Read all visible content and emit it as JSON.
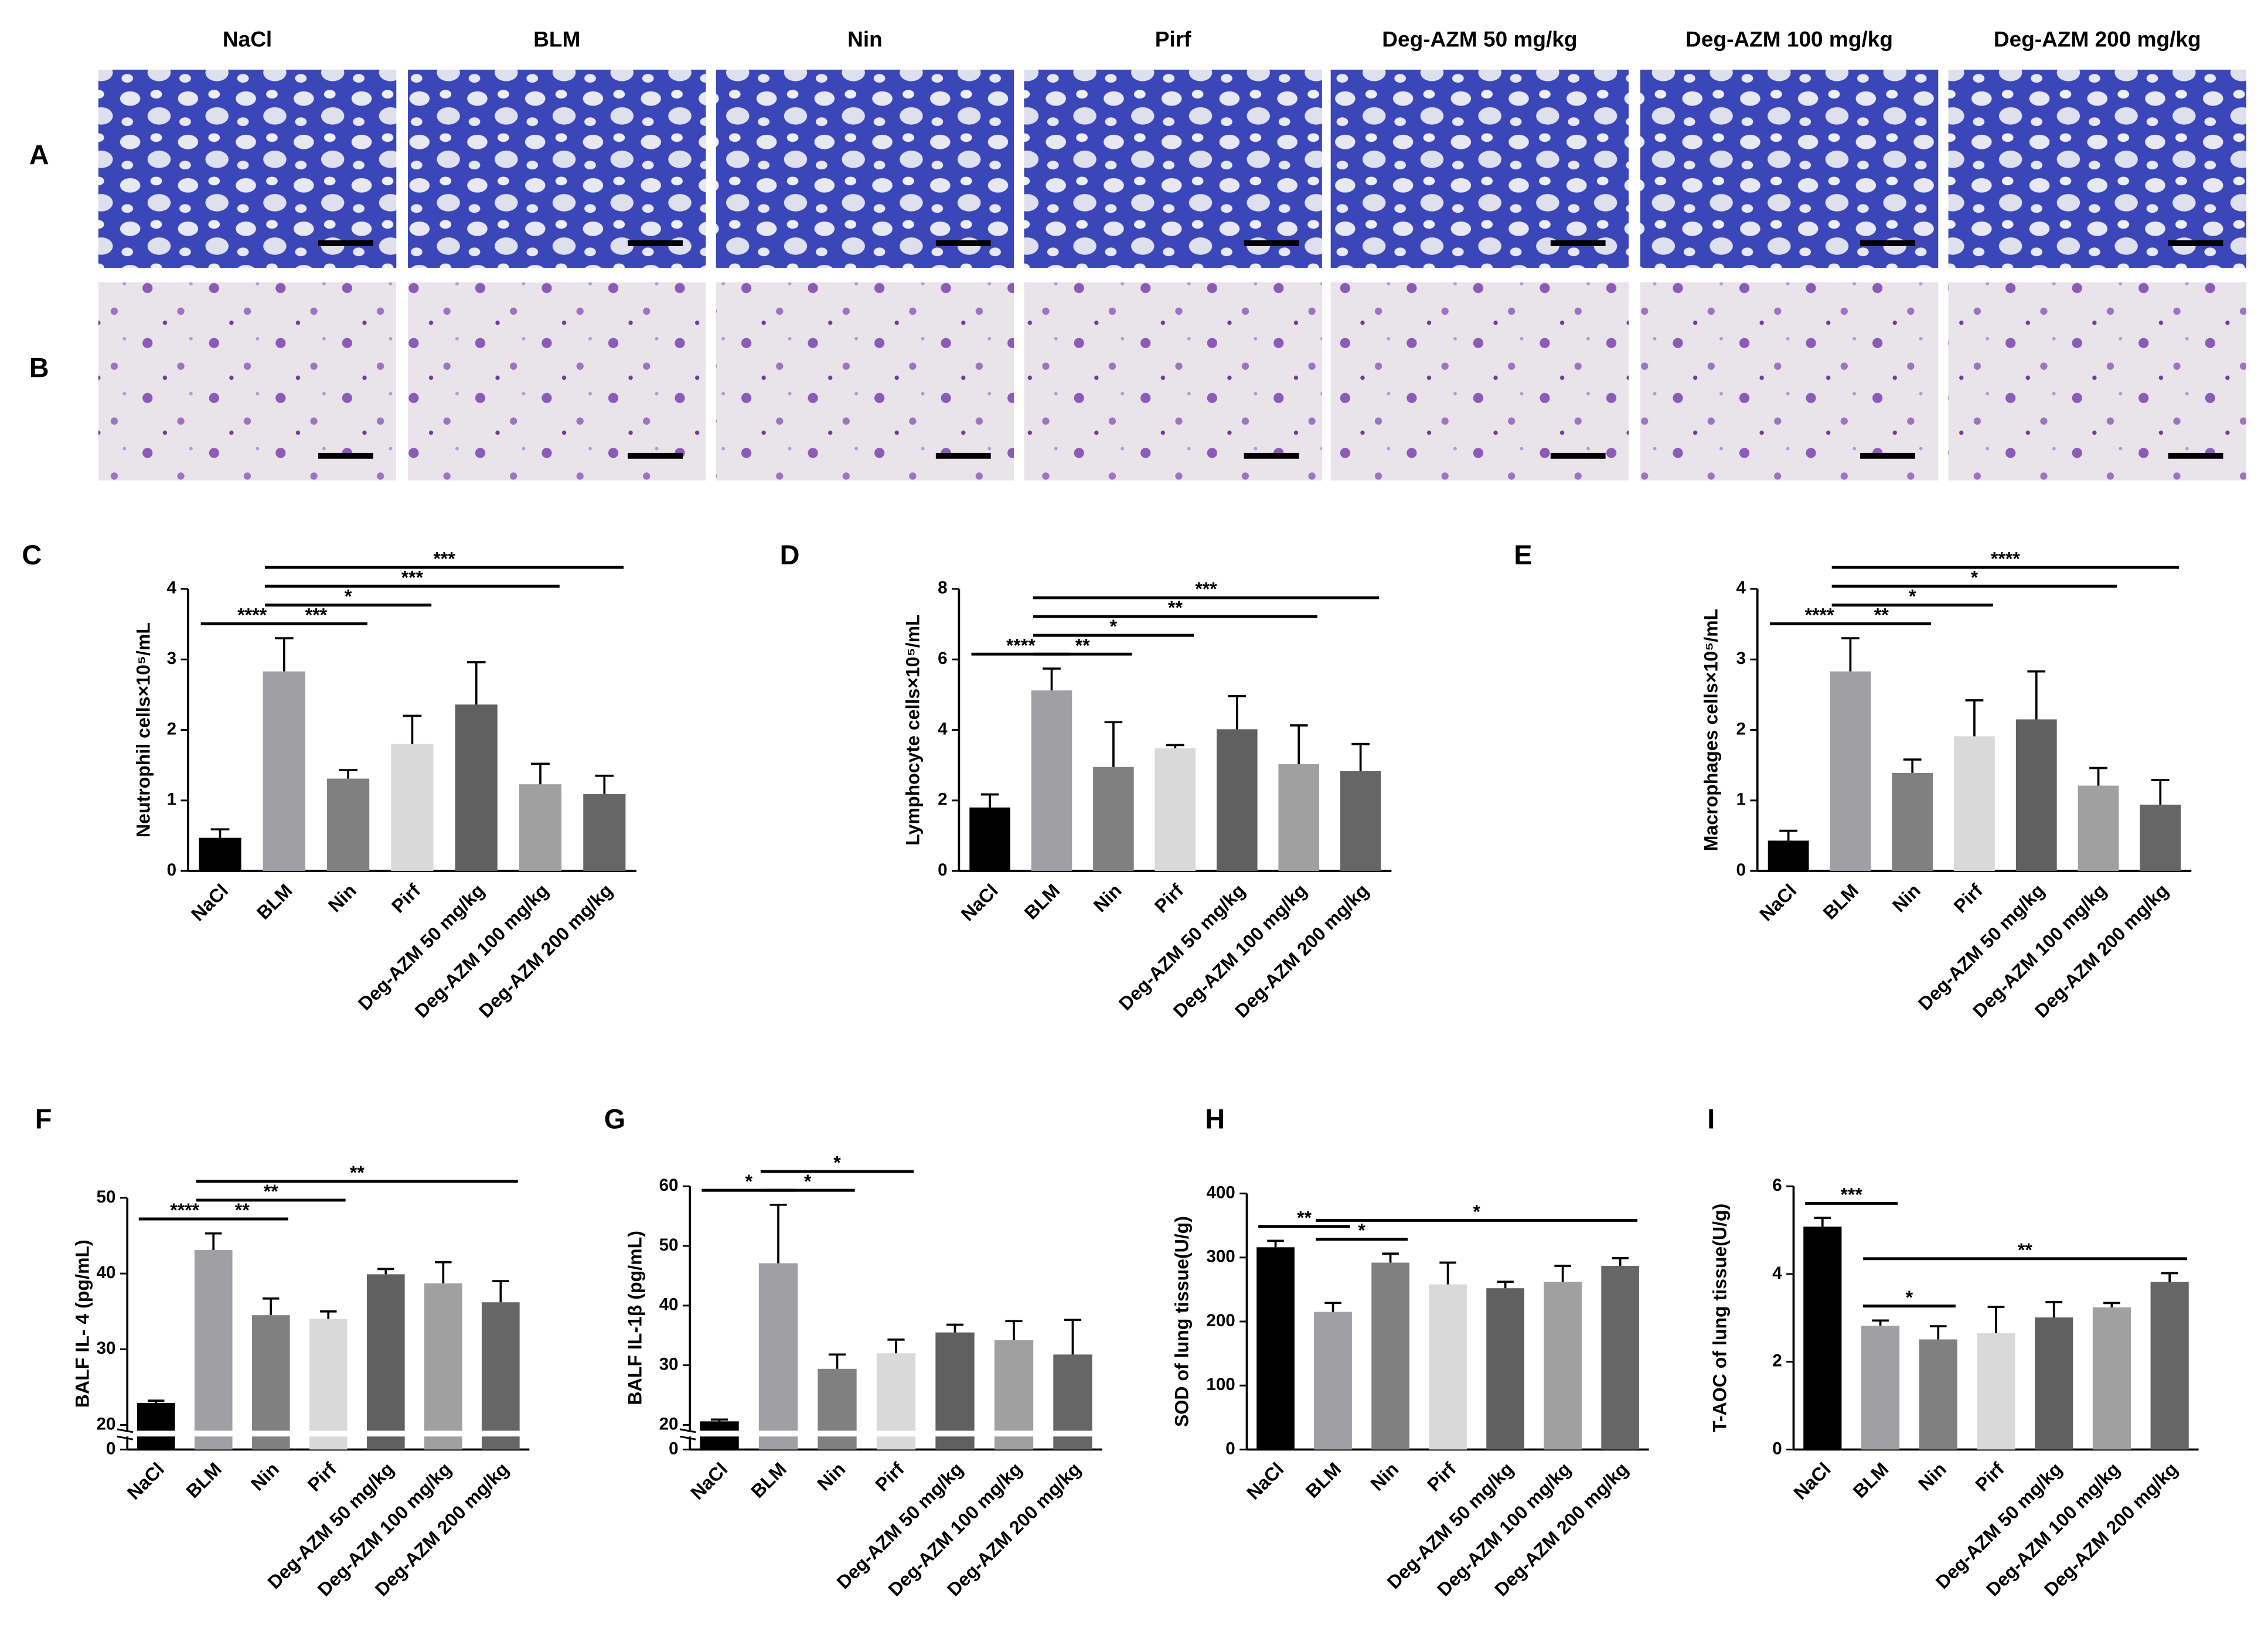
{
  "micrographs": {
    "columns": [
      "NaCl",
      "BLM",
      "Nin",
      "Pirf",
      "Deg-AZM 50 mg/kg",
      "Deg-AZM 100 mg/kg",
      "Deg-AZM 200 mg/kg"
    ],
    "rows": [
      "A",
      "B"
    ]
  },
  "chart_data": [
    {
      "type": "bar",
      "panel": "C",
      "ylabel": "Neutrophil cells×10⁵/mL",
      "categories": [
        "NaCl",
        "BLM",
        "Nin",
        "Pirf",
        "Deg-AZM 50 mg/kg",
        "Deg-AZM 100 mg/kg",
        "Deg-AZM 200 mg/kg"
      ],
      "values": [
        0.47,
        2.83,
        1.31,
        1.8,
        2.36,
        1.23,
        1.09
      ],
      "errors": [
        0.12,
        0.47,
        0.12,
        0.4,
        0.6,
        0.29,
        0.26
      ],
      "colors": [
        "#000000",
        "#a0a0a4",
        "#808080",
        "#d9d9d9",
        "#606060",
        "#a0a0a0",
        "#666666"
      ],
      "ylim": [
        0,
        4
      ],
      "yticks": [
        0,
        1,
        2,
        3,
        4
      ],
      "comparisons": [
        {
          "pair": [
            "NaCl",
            "BLM"
          ],
          "label": "****"
        },
        {
          "pair": [
            "BLM",
            "Nin"
          ],
          "label": "***"
        },
        {
          "pair": [
            "BLM",
            "Pirf"
          ],
          "label": "*"
        },
        {
          "pair": [
            "BLM",
            "Deg-AZM 100 mg/kg"
          ],
          "label": "***"
        },
        {
          "pair": [
            "BLM",
            "Deg-AZM 200 mg/kg"
          ],
          "label": "***"
        }
      ]
    },
    {
      "type": "bar",
      "panel": "D",
      "ylabel": "Lymphocyte cells×10⁵/mL",
      "categories": [
        "NaCl",
        "BLM",
        "Nin",
        "Pirf",
        "Deg-AZM 50 mg/kg",
        "Deg-AZM 100 mg/kg",
        "Deg-AZM 200 mg/kg"
      ],
      "values": [
        1.8,
        5.12,
        2.95,
        3.48,
        4.02,
        3.03,
        2.83
      ],
      "errors": [
        0.37,
        0.62,
        1.27,
        0.09,
        0.94,
        1.1,
        0.77
      ],
      "colors": [
        "#000000",
        "#a0a0a4",
        "#808080",
        "#d9d9d9",
        "#606060",
        "#a0a0a0",
        "#666666"
      ],
      "ylim": [
        0,
        8
      ],
      "yticks": [
        0,
        2,
        4,
        6,
        8
      ],
      "comparisons": [
        {
          "pair": [
            "NaCl",
            "BLM"
          ],
          "label": "****"
        },
        {
          "pair": [
            "BLM",
            "Nin"
          ],
          "label": "**"
        },
        {
          "pair": [
            "BLM",
            "Pirf"
          ],
          "label": "*"
        },
        {
          "pair": [
            "BLM",
            "Deg-AZM 100 mg/kg"
          ],
          "label": "**"
        },
        {
          "pair": [
            "BLM",
            "Deg-AZM 200 mg/kg"
          ],
          "label": "***"
        }
      ]
    },
    {
      "type": "bar",
      "panel": "E",
      "ylabel": "Macrophages cells×10⁵/mL",
      "categories": [
        "NaCl",
        "BLM",
        "Nin",
        "Pirf",
        "Deg-AZM 50 mg/kg",
        "Deg-AZM 100 mg/kg",
        "Deg-AZM 200 mg/kg"
      ],
      "values": [
        0.43,
        2.83,
        1.39,
        1.91,
        2.15,
        1.21,
        0.94
      ],
      "errors": [
        0.14,
        0.47,
        0.19,
        0.51,
        0.68,
        0.25,
        0.35
      ],
      "colors": [
        "#000000",
        "#a0a0a4",
        "#808080",
        "#d9d9d9",
        "#606060",
        "#a0a0a0",
        "#666666"
      ],
      "ylim": [
        0,
        4
      ],
      "yticks": [
        0,
        1,
        2,
        3,
        4
      ],
      "comparisons": [
        {
          "pair": [
            "NaCl",
            "BLM"
          ],
          "label": "****"
        },
        {
          "pair": [
            "BLM",
            "Nin"
          ],
          "label": "**"
        },
        {
          "pair": [
            "BLM",
            "Pirf"
          ],
          "label": "*"
        },
        {
          "pair": [
            "BLM",
            "Deg-AZM 100 mg/kg"
          ],
          "label": "*"
        },
        {
          "pair": [
            "BLM",
            "Deg-AZM 200 mg/kg"
          ],
          "label": "****"
        }
      ]
    },
    {
      "type": "bar",
      "panel": "F",
      "ylabel": "BALF IL- 4 (pg/mL)",
      "categories": [
        "NaCl",
        "BLM",
        "Nin",
        "Pirf",
        "Deg-AZM 50 mg/kg",
        "Deg-AZM 100 mg/kg",
        "Deg-AZM 200 mg/kg"
      ],
      "values": [
        22.9,
        43.1,
        34.5,
        34.0,
        39.9,
        38.7,
        36.2
      ],
      "errors": [
        0.3,
        2.2,
        2.2,
        1.0,
        0.7,
        2.8,
        2.8
      ],
      "colors": [
        "#000000",
        "#a0a0a4",
        "#808080",
        "#d9d9d9",
        "#606060",
        "#a0a0a0",
        "#666666"
      ],
      "ylim": [
        0,
        50
      ],
      "yticks": [
        0,
        20,
        30,
        40,
        50
      ],
      "ybreak": 20,
      "comparisons": [
        {
          "pair": [
            "NaCl",
            "BLM"
          ],
          "label": "****"
        },
        {
          "pair": [
            "BLM",
            "Nin"
          ],
          "label": "**"
        },
        {
          "pair": [
            "BLM",
            "Pirf"
          ],
          "label": "**"
        },
        {
          "pair": [
            "BLM",
            "Deg-AZM 200 mg/kg"
          ],
          "label": "**"
        }
      ]
    },
    {
      "type": "bar",
      "panel": "G",
      "ylabel": "BALF IL-1β (pg/mL)",
      "categories": [
        "NaCl",
        "BLM",
        "Nin",
        "Pirf",
        "Deg-AZM 50 mg/kg",
        "Deg-AZM 100 mg/kg",
        "Deg-AZM 200 mg/kg"
      ],
      "values": [
        20.6,
        47.1,
        29.4,
        32.0,
        35.5,
        34.2,
        31.8
      ],
      "errors": [
        0.3,
        9.8,
        2.4,
        2.3,
        1.3,
        3.2,
        5.8
      ],
      "colors": [
        "#000000",
        "#a0a0a4",
        "#808080",
        "#d9d9d9",
        "#606060",
        "#a0a0a0",
        "#666666"
      ],
      "ylim": [
        0,
        60
      ],
      "yticks": [
        0,
        20,
        30,
        40,
        50,
        60
      ],
      "ybreak": 20,
      "comparisons": [
        {
          "pair": [
            "NaCl",
            "BLM"
          ],
          "label": "*"
        },
        {
          "pair": [
            "BLM",
            "Nin"
          ],
          "label": "*"
        },
        {
          "pair": [
            "BLM",
            "Pirf"
          ],
          "label": "*"
        }
      ]
    },
    {
      "type": "bar",
      "panel": "H",
      "ylabel": "SOD of lung tissue(U/g)",
      "categories": [
        "NaCl",
        "BLM",
        "Nin",
        "Pirf",
        "Deg-AZM 50 mg/kg",
        "Deg-AZM 100 mg/kg",
        "Deg-AZM 200 mg/kg"
      ],
      "values": [
        316,
        215,
        292,
        258,
        252,
        262,
        287
      ],
      "errors": [
        10,
        14,
        14,
        34,
        10,
        25,
        12
      ],
      "colors": [
        "#000000",
        "#a0a0a4",
        "#808080",
        "#d9d9d9",
        "#606060",
        "#a0a0a0",
        "#666666"
      ],
      "ylim": [
        0,
        400
      ],
      "yticks": [
        0,
        100,
        200,
        300,
        400
      ],
      "comparisons": [
        {
          "pair": [
            "NaCl",
            "BLM"
          ],
          "label": "**"
        },
        {
          "pair": [
            "BLM",
            "Nin"
          ],
          "label": "*"
        },
        {
          "pair": [
            "BLM",
            "Deg-AZM 200 mg/kg"
          ],
          "label": "*"
        }
      ]
    },
    {
      "type": "bar",
      "panel": "I",
      "ylabel": "T-AOC of lung tissue(U/g)",
      "categories": [
        "NaCl",
        "BLM",
        "Nin",
        "Pirf",
        "Deg-AZM 50 mg/kg",
        "Deg-AZM 100 mg/kg",
        "Deg-AZM 200 mg/kg"
      ],
      "values": [
        5.08,
        2.82,
        2.51,
        2.65,
        3.01,
        3.24,
        3.82
      ],
      "errors": [
        0.2,
        0.12,
        0.3,
        0.6,
        0.35,
        0.1,
        0.2
      ],
      "colors": [
        "#000000",
        "#a0a0a4",
        "#808080",
        "#d9d9d9",
        "#606060",
        "#a0a0a0",
        "#666666"
      ],
      "ylim": [
        0,
        6
      ],
      "yticks": [
        0,
        2,
        4,
        6
      ],
      "comparisons": [
        {
          "pair": [
            "NaCl",
            "BLM"
          ],
          "label": "***"
        },
        {
          "pair": [
            "BLM",
            "Nin"
          ],
          "label": "*"
        },
        {
          "pair": [
            "BLM",
            "Deg-AZM 200 mg/kg"
          ],
          "label": "**"
        }
      ]
    }
  ]
}
